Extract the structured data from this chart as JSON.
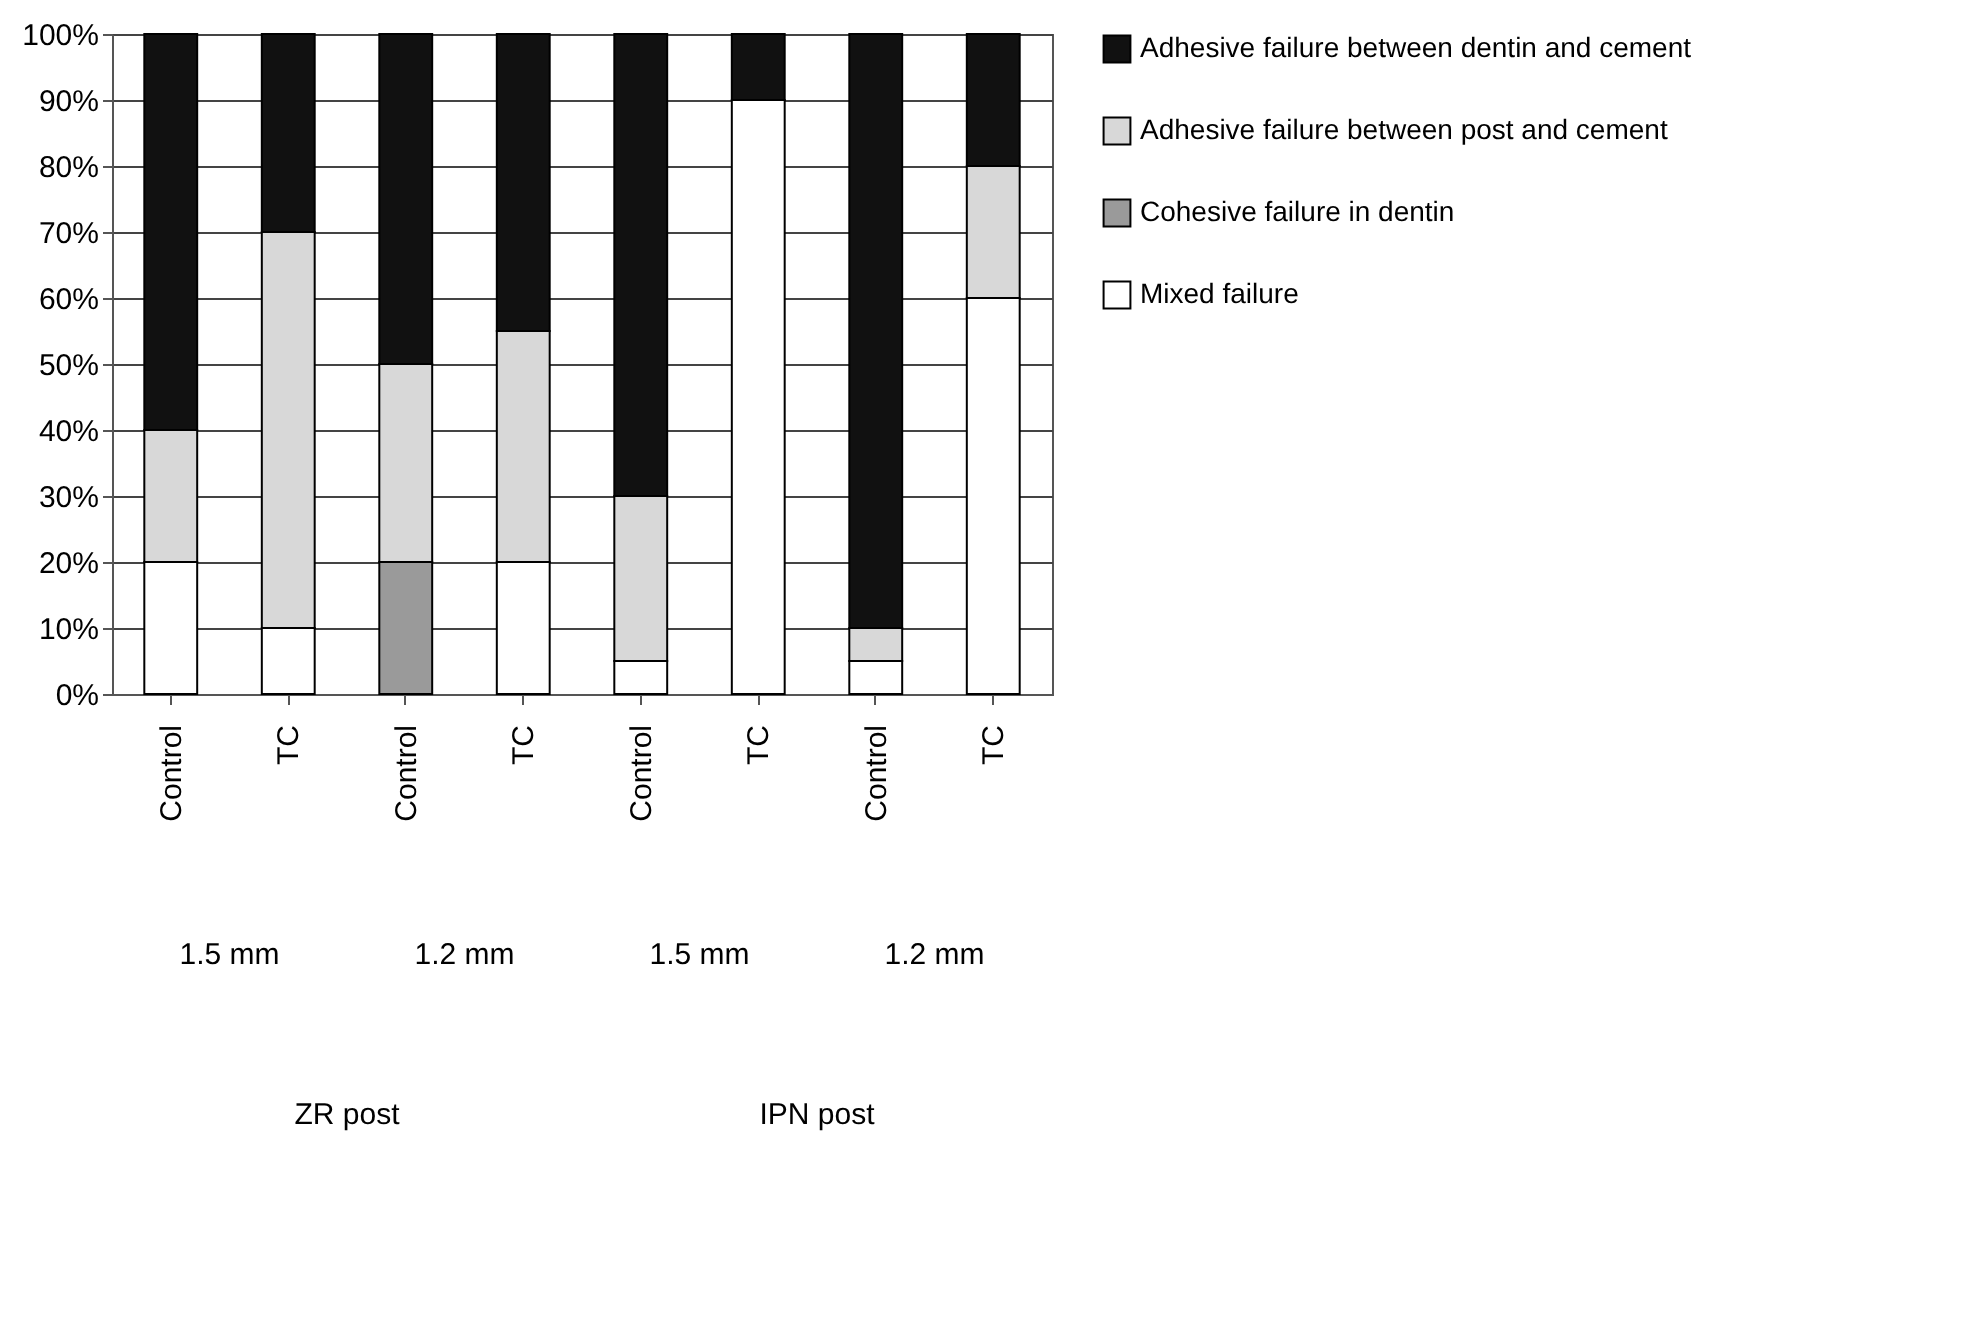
{
  "chart_data": {
    "type": "bar",
    "stacked": true,
    "categories": [
      "Control",
      "TC",
      "Control",
      "TC",
      "Control",
      "TC",
      "Control",
      "TC"
    ],
    "series": [
      {
        "name": "Mixed failure",
        "color": "#ffffff",
        "values": [
          20,
          10,
          null,
          20,
          5,
          90,
          5,
          60
        ]
      },
      {
        "name": "Cohesive failure in dentin",
        "color": "#9a9a9a",
        "values": [
          null,
          null,
          20,
          null,
          null,
          null,
          null,
          null
        ]
      },
      {
        "name": "Adhesive failure between post and cement",
        "color": "#d8d8d8",
        "values": [
          20,
          60,
          30,
          35,
          25,
          null,
          5,
          20
        ]
      },
      {
        "name": "Adhesive failure between dentin and cement",
        "color": "#111111",
        "values": [
          60,
          30,
          50,
          45,
          70,
          10,
          90,
          20
        ]
      }
    ],
    "ylim": [
      0,
      100
    ],
    "yticks": [
      {
        "value": 0,
        "label": "0%"
      },
      {
        "value": 10,
        "label": "10%"
      },
      {
        "value": 20,
        "label": "20%"
      },
      {
        "value": 30,
        "label": "30%"
      },
      {
        "value": 40,
        "label": "40%"
      },
      {
        "value": 50,
        "label": "50%"
      },
      {
        "value": 60,
        "label": "60%"
      },
      {
        "value": 70,
        "label": "70%"
      },
      {
        "value": 80,
        "label": "80%"
      },
      {
        "value": 90,
        "label": "90%"
      },
      {
        "value": 100,
        "label": "100%"
      }
    ],
    "grid": "y",
    "legend": "right",
    "annotations": [
      "1.5 mm",
      "1.2 mm",
      "1.5 mm",
      "1.2 mm",
      "ZR post",
      "IPN post"
    ]
  }
}
